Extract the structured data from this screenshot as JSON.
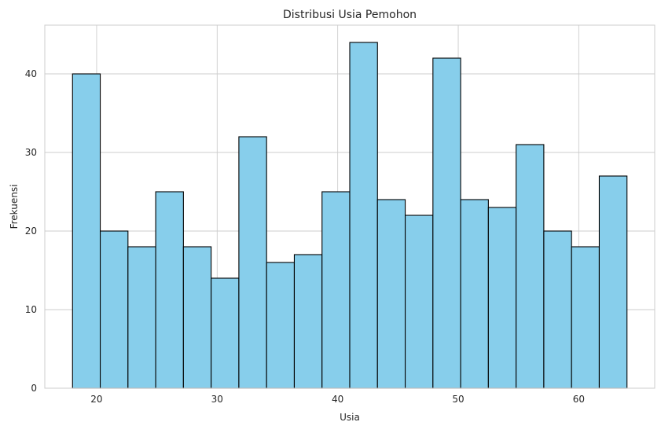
{
  "chart_data": {
    "type": "bar",
    "title": "Distribusi Usia Pemohon",
    "xlabel": "Usia",
    "ylabel": "Frekuensi",
    "xlim": [
      15.7,
      66.3
    ],
    "ylim": [
      0,
      46.2
    ],
    "x_ticks": [
      20,
      30,
      40,
      50,
      60
    ],
    "y_ticks": [
      0,
      10,
      20,
      30,
      40
    ],
    "bin_edges": [
      18,
      20.3,
      22.6,
      24.9,
      27.2,
      29.5,
      31.8,
      34.1,
      36.4,
      38.7,
      41.0,
      43.3,
      45.6,
      47.9,
      50.2,
      52.5,
      54.8,
      57.1,
      59.4,
      61.7,
      64
    ],
    "values": [
      40,
      20,
      18,
      25,
      18,
      14,
      32,
      16,
      17,
      25,
      44,
      24,
      22,
      42,
      24,
      23,
      31,
      20,
      18,
      27
    ],
    "grid": true,
    "bar_color": "#87ceeb",
    "edge_color": "#000000",
    "grid_color": "#cccccc",
    "spine_color": "#cccccc"
  }
}
